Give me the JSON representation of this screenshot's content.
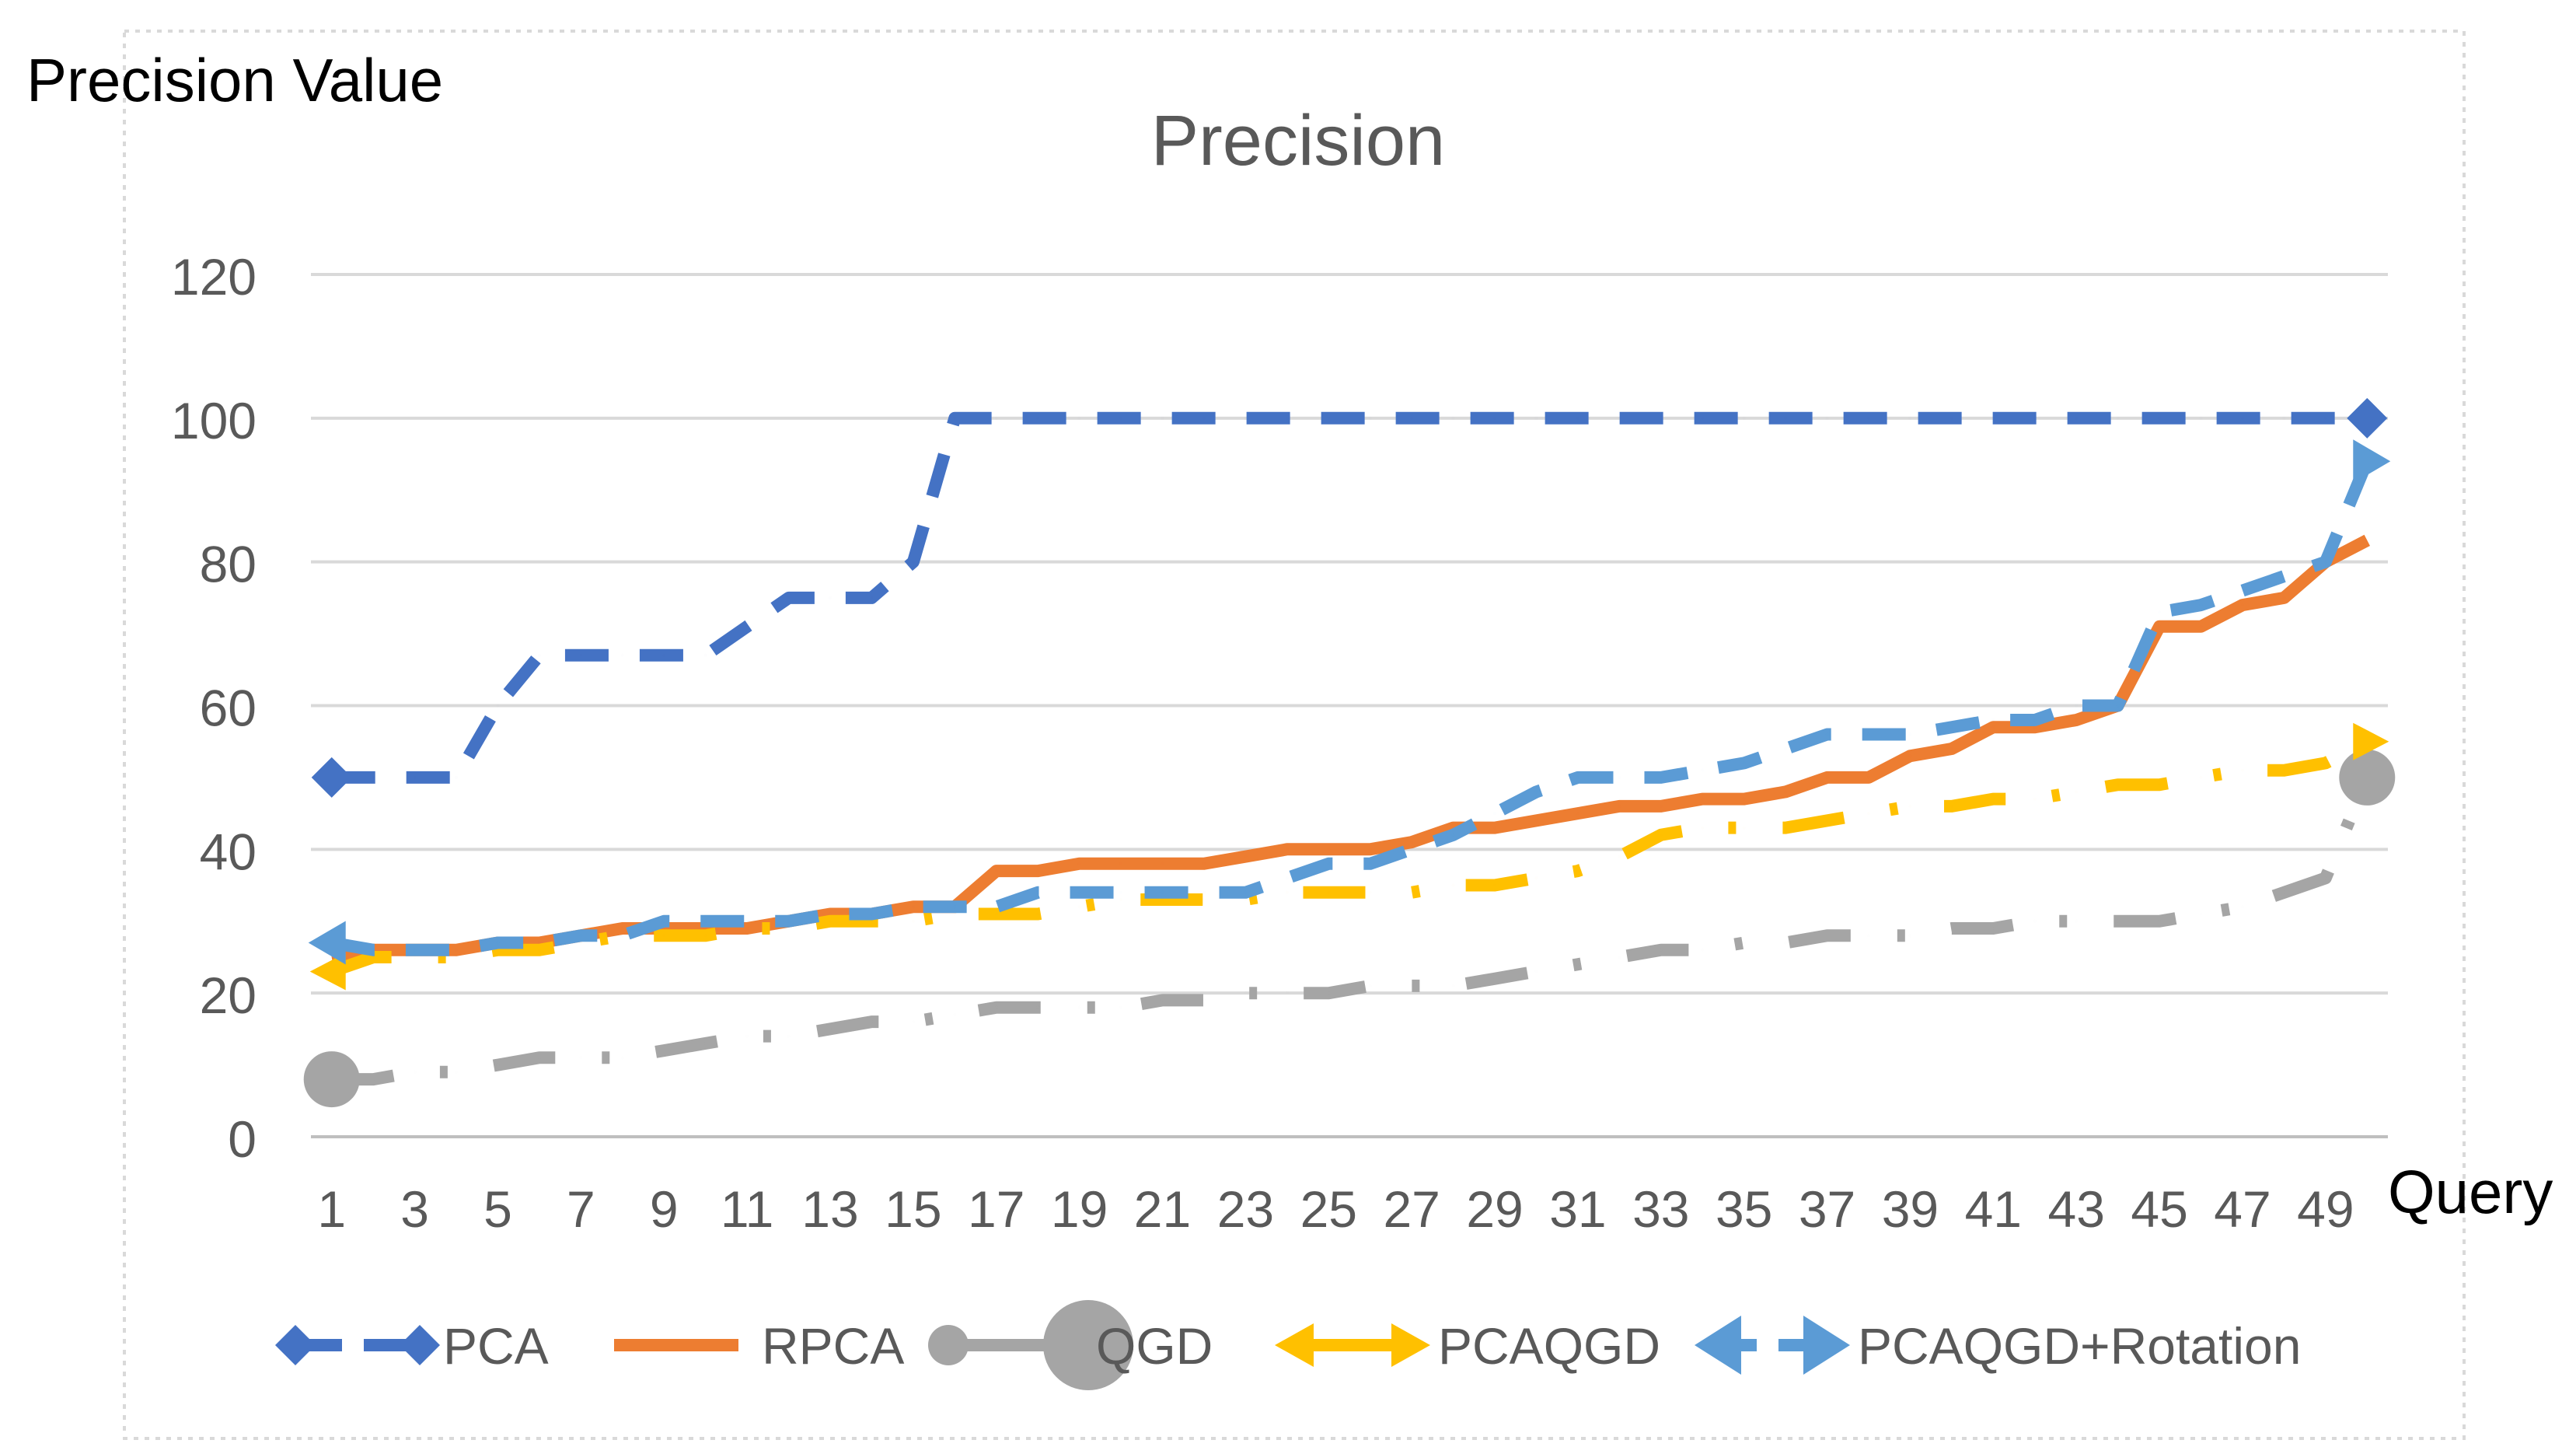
{
  "chart_data": {
    "type": "line",
    "title": "Precision",
    "ylabel": "Precision Value",
    "xlabel": "Query",
    "ylim": [
      0,
      120
    ],
    "yticks": [
      0,
      20,
      40,
      60,
      80,
      100,
      120
    ],
    "xticks": [
      1,
      3,
      5,
      7,
      9,
      11,
      13,
      15,
      17,
      19,
      21,
      23,
      25,
      27,
      29,
      31,
      33,
      35,
      37,
      39,
      41,
      43,
      45,
      47,
      49
    ],
    "grid": true,
    "legend_position": "bottom",
    "x": [
      1,
      2,
      3,
      4,
      5,
      6,
      7,
      8,
      9,
      10,
      11,
      12,
      13,
      14,
      15,
      16,
      17,
      18,
      19,
      20,
      21,
      22,
      23,
      24,
      25,
      26,
      27,
      28,
      29,
      30,
      31,
      32,
      33,
      34,
      35,
      36,
      37,
      38,
      39,
      40,
      41,
      42,
      43,
      44,
      45,
      46,
      47,
      48,
      49,
      50
    ],
    "series": [
      {
        "name": "PCA",
        "color": "#4472C4",
        "style": "dash",
        "marker": "diamond",
        "values": [
          50,
          50,
          50,
          50,
          60,
          67,
          67,
          67,
          67,
          67,
          71,
          75,
          75,
          75,
          80,
          100,
          100,
          100,
          100,
          100,
          100,
          100,
          100,
          100,
          100,
          100,
          100,
          100,
          100,
          100,
          100,
          100,
          100,
          100,
          100,
          100,
          100,
          100,
          100,
          100,
          100,
          100,
          100,
          100,
          100,
          100,
          100,
          100,
          100,
          100
        ]
      },
      {
        "name": "RPCA",
        "color": "#ED7D31",
        "style": "solid",
        "marker": "none",
        "values": [
          25,
          26,
          26,
          26,
          27,
          27,
          28,
          29,
          29,
          29,
          29,
          30,
          31,
          31,
          32,
          32,
          37,
          37,
          38,
          38,
          38,
          38,
          39,
          40,
          40,
          40,
          41,
          43,
          43,
          44,
          45,
          46,
          46,
          47,
          47,
          48,
          50,
          50,
          53,
          54,
          57,
          57,
          58,
          60,
          71,
          71,
          74,
          75,
          80,
          83
        ]
      },
      {
        "name": "QGD",
        "color": "#A5A5A5",
        "style": "longdashdot",
        "marker": "circle",
        "values": [
          8,
          8,
          9,
          9,
          10,
          11,
          11,
          11,
          12,
          13,
          14,
          14,
          15,
          16,
          16,
          17,
          18,
          18,
          18,
          18,
          19,
          19,
          20,
          20,
          20,
          21,
          21,
          21,
          22,
          23,
          24,
          25,
          26,
          26,
          27,
          27,
          28,
          28,
          28,
          29,
          29,
          30,
          30,
          30,
          30,
          31,
          32,
          34,
          36,
          50
        ]
      },
      {
        "name": "PCAQGD",
        "color": "#FFC000",
        "style": "longdashdot",
        "marker": "arrow",
        "values": [
          23,
          25,
          25,
          25,
          26,
          26,
          27,
          28,
          28,
          28,
          29,
          29,
          30,
          30,
          30,
          31,
          31,
          31,
          32,
          33,
          33,
          33,
          33,
          34,
          34,
          34,
          34,
          35,
          35,
          36,
          37,
          39,
          42,
          43,
          43,
          43,
          44,
          45,
          46,
          46,
          47,
          47,
          48,
          49,
          49,
          50,
          51,
          51,
          52,
          55
        ]
      },
      {
        "name": "PCAQGD+Rotation",
        "color": "#5B9BD5",
        "style": "dash",
        "marker": "doublearrow",
        "values": [
          27,
          26,
          26,
          26,
          27,
          27,
          28,
          28,
          30,
          30,
          30,
          30,
          31,
          31,
          32,
          32,
          32,
          34,
          34,
          34,
          34,
          34,
          34,
          36,
          38,
          38,
          40,
          42,
          45,
          48,
          50,
          50,
          50,
          51,
          52,
          54,
          56,
          56,
          56,
          57,
          58,
          58,
          60,
          60,
          73,
          74,
          76,
          78,
          80,
          94
        ]
      }
    ]
  }
}
